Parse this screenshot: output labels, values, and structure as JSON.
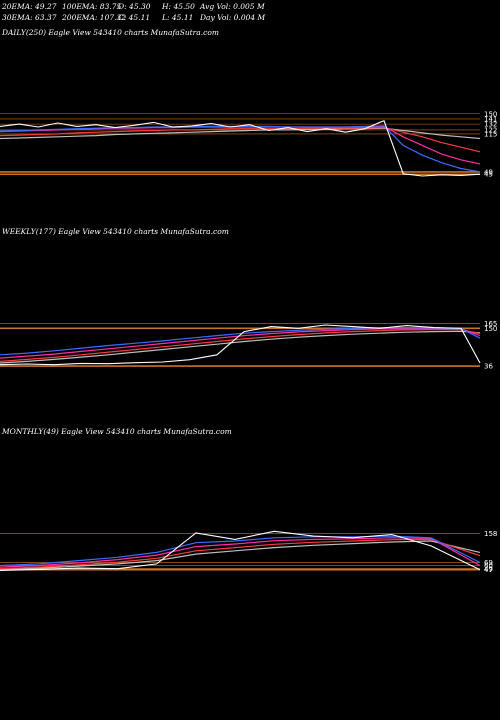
{
  "header": {
    "row1": [
      "20EMA: 49.27",
      "100EMA: 83.75",
      "O: 45.30",
      "H: 45.50",
      "Avg Vol: 0.005 M"
    ],
    "row2": [
      "30EMA: 63.37",
      "200EMA: 107.32",
      "C: 45.11",
      "L: 45.11",
      "Day Vol: 0.004  M"
    ]
  },
  "colors": {
    "background": "#000000",
    "price": "#ffffff",
    "ema_blue": "#3a6cff",
    "ema_pink": "#ff2ea6",
    "ema_red": "#ff3b3b",
    "ema_gray": "#bdbdbd",
    "level_line": "#c8722a"
  },
  "panels": [
    {
      "title": "DAILY(250) Eagle  View  543410  charts MunafaSutra.com",
      "levels": [
        "150",
        "141",
        "132",
        "122",
        "115",
        "49",
        "45"
      ],
      "hlines": [
        "150",
        "141",
        "132",
        "122",
        "115",
        "49",
        "45"
      ]
    },
    {
      "title": "WEEKLY(177) Eagle  View  543410  charts MunafaSutra.com",
      "levels": [
        "165",
        "150",
        "36"
      ],
      "hlines": [
        "165",
        "150",
        "36"
      ]
    },
    {
      "title": "MONTHLY(49) Eagle  View  543410  charts MunafaSutra.com",
      "levels": [
        "158",
        "69",
        "60",
        "49",
        "47"
      ],
      "hlines": [
        "158",
        "69",
        "60",
        "49",
        "47"
      ]
    }
  ],
  "chart_data": [
    {
      "type": "line",
      "title": "DAILY(250) Eagle  View  543410  charts MunafaSutra.com",
      "x": [
        0,
        10,
        20,
        30,
        40,
        50,
        60,
        70,
        80,
        90,
        100,
        110,
        120,
        130,
        140,
        150,
        160,
        170,
        180,
        190,
        200,
        210,
        220,
        230,
        240,
        250
      ],
      "series": [
        {
          "values": [
            128,
            132,
            127,
            134,
            128,
            131,
            126,
            130,
            135,
            127,
            129,
            133,
            127,
            131,
            121,
            126,
            119,
            124,
            118,
            124,
            138,
            46,
            42,
            44,
            43,
            45
          ]
        },
        {
          "values": [
            120,
            121,
            122,
            123,
            124,
            125,
            126,
            126,
            127,
            127,
            128,
            128,
            128,
            128,
            128,
            127,
            127,
            127,
            127,
            128,
            129,
            95,
            78,
            65,
            55,
            49
          ]
        },
        {
          "values": [
            119,
            120,
            121,
            122,
            123,
            124,
            125,
            125,
            126,
            126,
            127,
            127,
            127,
            127,
            127,
            127,
            127,
            127,
            127,
            127,
            128,
            110,
            95,
            80,
            70,
            63
          ]
        },
        {
          "values": [
            112,
            113,
            114,
            115,
            117,
            118,
            119,
            120,
            121,
            122,
            122,
            123,
            124,
            124,
            124,
            124,
            125,
            125,
            125,
            125,
            126,
            118,
            110,
            100,
            92,
            84
          ]
        },
        {
          "values": [
            107,
            108,
            109,
            110,
            111,
            112,
            114,
            115,
            116,
            117,
            118,
            119,
            120,
            121,
            122,
            122,
            123,
            123,
            124,
            124,
            125,
            121,
            117,
            113,
            110,
            107
          ]
        }
      ],
      "ylim": [
        35,
        160
      ]
    },
    {
      "type": "line",
      "title": "WEEKLY(177) Eagle  View  543410  charts MunafaSutra.com",
      "x": [
        0,
        10,
        20,
        30,
        40,
        50,
        60,
        70,
        80,
        90,
        100,
        110,
        120,
        130,
        140,
        150,
        160,
        170,
        177
      ],
      "series": [
        {
          "values": [
            40,
            42,
            40,
            44,
            43,
            46,
            48,
            55,
            70,
            140,
            155,
            150,
            160,
            155,
            150,
            158,
            152,
            150,
            45
          ]
        },
        {
          "values": [
            70,
            75,
            82,
            90,
            98,
            105,
            112,
            120,
            128,
            135,
            140,
            144,
            147,
            150,
            152,
            152,
            151,
            149,
            120
          ]
        },
        {
          "values": [
            60,
            66,
            72,
            80,
            88,
            96,
            104,
            112,
            120,
            128,
            134,
            139,
            143,
            146,
            148,
            149,
            149,
            148,
            128
          ]
        },
        {
          "values": [
            50,
            56,
            62,
            70,
            78,
            86,
            94,
            102,
            110,
            118,
            125,
            131,
            136,
            140,
            143,
            145,
            146,
            146,
            134
          ]
        },
        {
          "values": [
            45,
            50,
            56,
            63,
            70,
            78,
            86,
            94,
            102,
            110,
            117,
            123,
            128,
            132,
            135,
            138,
            140,
            141,
            136
          ]
        }
      ],
      "ylim": [
        30,
        175
      ]
    },
    {
      "type": "line",
      "title": "MONTHLY(49) Eagle  View  543410  charts MunafaSutra.com",
      "x": [
        0,
        4,
        8,
        12,
        16,
        20,
        24,
        28,
        32,
        36,
        40,
        44,
        49
      ],
      "series": [
        {
          "values": [
            45,
            48,
            52,
            50,
            65,
            160,
            140,
            165,
            150,
            145,
            155,
            120,
            47
          ]
        },
        {
          "values": [
            60,
            65,
            75,
            85,
            100,
            130,
            135,
            145,
            148,
            148,
            150,
            145,
            69
          ]
        },
        {
          "values": [
            55,
            60,
            68,
            78,
            92,
            118,
            126,
            136,
            140,
            142,
            145,
            143,
            60
          ]
        },
        {
          "values": [
            50,
            55,
            62,
            70,
            82,
            105,
            115,
            125,
            131,
            135,
            139,
            140,
            90
          ]
        },
        {
          "values": [
            48,
            52,
            58,
            65,
            75,
            95,
            105,
            115,
            122,
            127,
            132,
            135,
            100
          ]
        }
      ],
      "ylim": [
        40,
        175
      ]
    }
  ]
}
